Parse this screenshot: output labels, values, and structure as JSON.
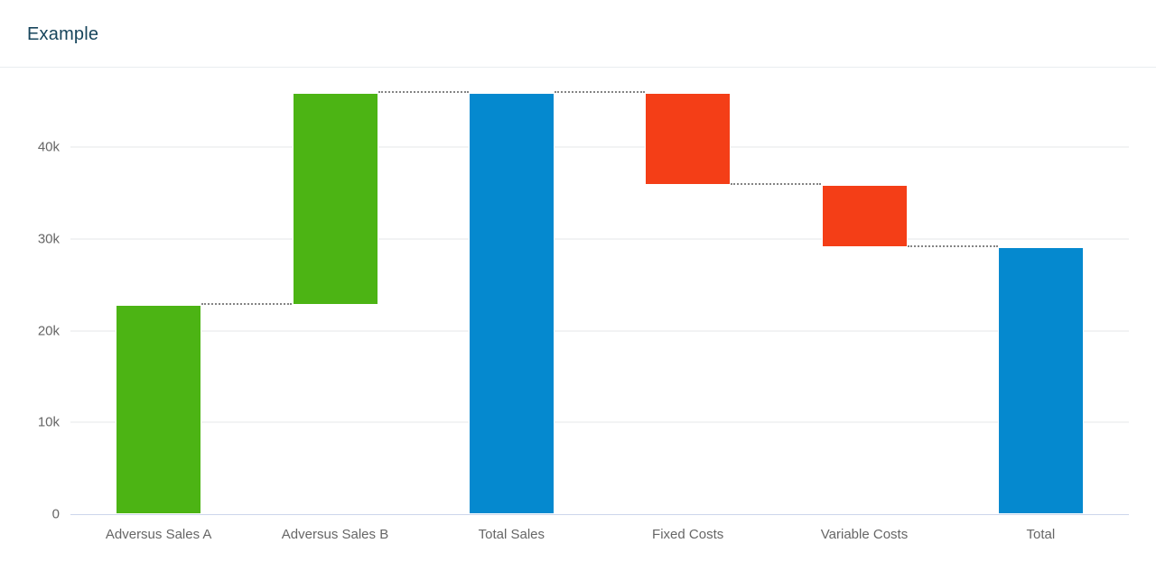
{
  "header": {
    "title": "Example"
  },
  "colors": {
    "title": "#17455c",
    "positive": "#4cb414",
    "negative": "#f43e17",
    "sum": "#0589cf",
    "gridline": "#f2f3f4",
    "axis_line": "#ccd6eb",
    "axis_label": "#666666",
    "connector": "#848484",
    "divider": "#e9edf0",
    "background": "#ffffff"
  },
  "chart_data": {
    "type": "bar",
    "subtype": "waterfall",
    "title": "Example",
    "categories": [
      "Adversus Sales A",
      "Adversus Sales B",
      "Total Sales",
      "Fixed Costs",
      "Variable Costs",
      "Total"
    ],
    "points": [
      {
        "name": "Adversus Sales A",
        "value": 22800,
        "role": "positive"
      },
      {
        "name": "Adversus Sales B",
        "value": 23100,
        "role": "positive"
      },
      {
        "name": "Total Sales",
        "value": 45900,
        "role": "sum"
      },
      {
        "name": "Fixed Costs",
        "value": -10000,
        "role": "negative"
      },
      {
        "name": "Variable Costs",
        "value": -6800,
        "role": "negative"
      },
      {
        "name": "Total",
        "value": 29100,
        "role": "sum"
      }
    ],
    "running_totals": [
      22800,
      45900,
      45900,
      35900,
      29100,
      29100
    ],
    "xlabel": "",
    "ylabel": "",
    "ylim": [
      0,
      46500
    ],
    "y_ticks": [
      {
        "label": "0",
        "value": 0
      },
      {
        "label": "10k",
        "value": 10000
      },
      {
        "label": "20k",
        "value": 20000
      },
      {
        "label": "30k",
        "value": 30000
      },
      {
        "label": "40k",
        "value": 40000
      }
    ],
    "grid": "horizontal",
    "legend": "none",
    "connectors": "dotted"
  }
}
